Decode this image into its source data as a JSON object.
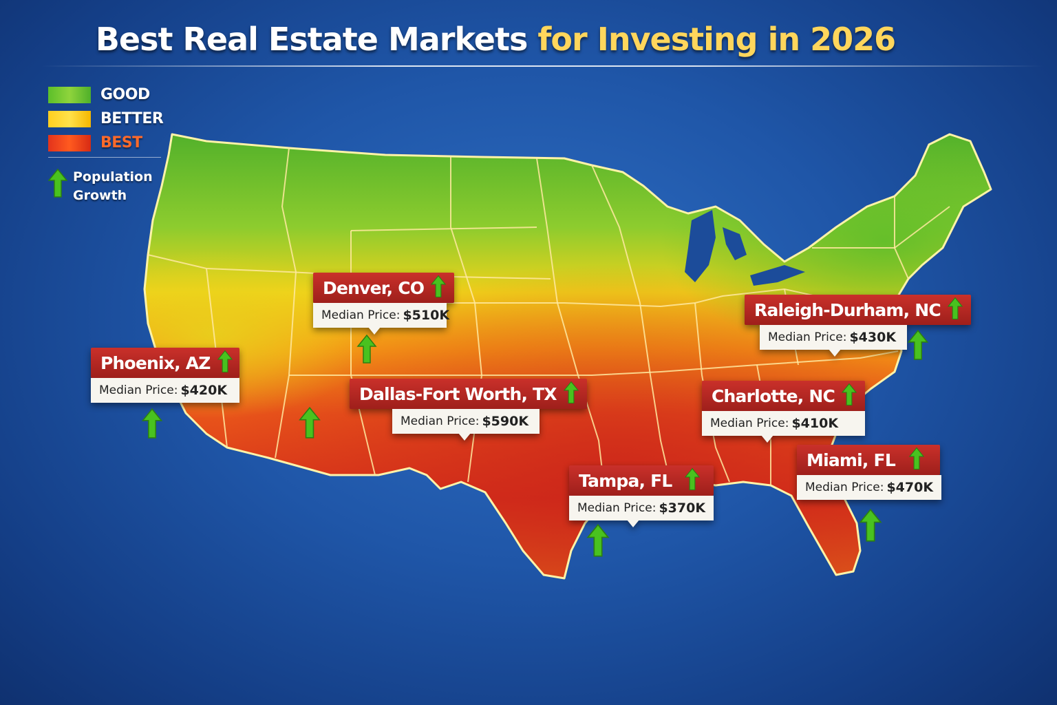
{
  "title": {
    "main": "Best Real Estate Markets ",
    "highlight": "for Investing",
    "year": " in 2026"
  },
  "legend": {
    "levels": [
      {
        "label": "GOOD",
        "color": "#5cbf2a"
      },
      {
        "label": "BETTER",
        "color": "#ffd21f"
      },
      {
        "label": "BEST",
        "color": "#e8421c"
      }
    ],
    "population_icon": "green-up-arrow-icon",
    "population_line1": "Population",
    "population_line2": "Growth"
  },
  "markets": [
    {
      "city": "Denver, CO",
      "price_label": "Median Price:",
      "price": "$510K"
    },
    {
      "city": "Phoenix, AZ",
      "price_label": "Median Price:",
      "price": "$420K"
    },
    {
      "city": "Dallas-Fort Worth, TX",
      "price_label": "Median Price:",
      "price": "$590K"
    },
    {
      "city": "Tampa, FL",
      "price_label": "Median Price:",
      "price": "$370K"
    },
    {
      "city": "Raleigh-Durham, NC",
      "price_label": "Median Price:",
      "price": "$430K"
    },
    {
      "city": "Charlotte, NC",
      "price_label": "Median Price:",
      "price": "$410K"
    },
    {
      "city": "Miami, FL",
      "price_label": "Median Price:",
      "price": "$470K"
    }
  ],
  "colors": {
    "ocean": "#1f56a8",
    "good": "#5cbf2a",
    "better": "#ffd21f",
    "best": "#e8421c",
    "callout": "#b8271f",
    "arrow": "#49c21f"
  }
}
